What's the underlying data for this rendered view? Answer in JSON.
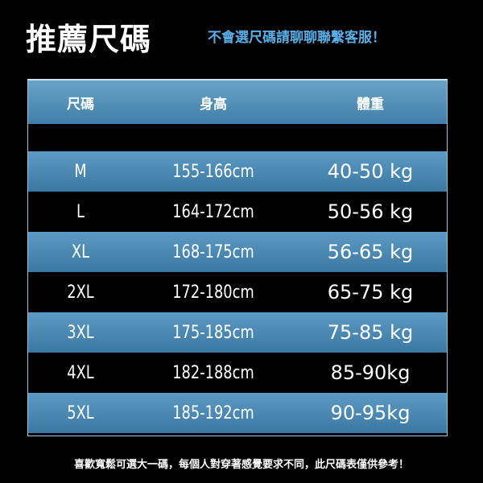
{
  "title": "推薦尺碼",
  "subtitle": "不會選尺碼請聊聊聯繫客服！",
  "table": {
    "headers": [
      "尺碼",
      "身高",
      "體重"
    ],
    "rows": [
      {
        "size": "M",
        "height": "155-166cm",
        "weight": "40-50 kg"
      },
      {
        "size": "L",
        "height": "164-172cm",
        "weight": "50-56 kg"
      },
      {
        "size": "XL",
        "height": "168-175cm",
        "weight": "56-65 kg"
      },
      {
        "size": "2XL",
        "height": "172-180cm",
        "weight": "65-75 kg"
      },
      {
        "size": "3XL",
        "height": "175-185cm",
        "weight": "75-85 kg"
      },
      {
        "size": "4XL",
        "height": "182-188cm",
        "weight": "85-90kg"
      },
      {
        "size": "5XL",
        "height": "185-192cm",
        "weight": "90-95kg"
      }
    ]
  },
  "footer": "喜歡寬鬆可選大一碼，每個人對穿著感覺要求不同，此尺碼表僅供參考！",
  "colors": {
    "accent": "#5aaee8",
    "row_blue": "#4a88b3"
  }
}
